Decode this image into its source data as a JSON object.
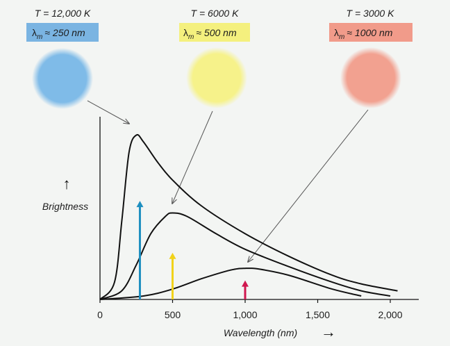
{
  "colors": {
    "background": "#f3f5f3",
    "blue": "#7fbbe8",
    "yellow": "#f6f28a",
    "red": "#f2a190",
    "blue_box": "#7ab4e2",
    "yellow_box": "#f4f07e",
    "red_box": "#f19b8a",
    "blue_arrow": "#1e8fc0",
    "yellow_arrow": "#f1d21a",
    "red_arrow": "#d0174f"
  },
  "stars": [
    {
      "temperature": "T = 12,000 K",
      "lambda_sym": "λ",
      "lambda_sub": "m",
      "peak_text": "≈ 250 nm",
      "peak_nm": 250
    },
    {
      "temperature": "T = 6000 K",
      "lambda_sym": "λ",
      "lambda_sub": "m",
      "peak_text": "≈ 500 nm",
      "peak_nm": 500
    },
    {
      "temperature": "T = 3000 K",
      "lambda_sym": "λ",
      "lambda_sub": "m",
      "peak_text": "≈ 1000 nm",
      "peak_nm": 1000
    }
  ],
  "chart_data": {
    "type": "line",
    "title": "",
    "xlabel": "Wavelength (nm)",
    "ylabel": "Brightness",
    "xlim": [
      0,
      2100
    ],
    "ylim": [
      0,
      1.0
    ],
    "xticks": [
      0,
      500,
      1000,
      1500,
      2000
    ],
    "xtick_labels": [
      "0",
      "500",
      "1,000",
      "1,500",
      "2,000"
    ],
    "series": [
      {
        "name": "T = 12,000 K",
        "peak_nm": 250,
        "peak_brightness": 0.95,
        "x": [
          0,
          100,
          150,
          200,
          250,
          300,
          400,
          500,
          700,
          1000,
          1300,
          1600,
          1800,
          2050
        ],
        "y": [
          0,
          0.1,
          0.45,
          0.85,
          0.95,
          0.91,
          0.79,
          0.69,
          0.54,
          0.38,
          0.25,
          0.14,
          0.09,
          0.05
        ]
      },
      {
        "name": "T = 6000 K",
        "peak_nm": 500,
        "peak_brightness": 0.5,
        "x": [
          0,
          150,
          250,
          350,
          450,
          500,
          600,
          800,
          1000,
          1300,
          1600,
          1800,
          2000
        ],
        "y": [
          0,
          0.05,
          0.2,
          0.38,
          0.48,
          0.5,
          0.48,
          0.38,
          0.29,
          0.19,
          0.1,
          0.05,
          0.02
        ]
      },
      {
        "name": "T = 3000 K",
        "peak_nm": 1000,
        "peak_brightness": 0.18,
        "x": [
          0,
          300,
          500,
          700,
          900,
          1000,
          1100,
          1300,
          1600,
          1800
        ],
        "y": [
          0,
          0.02,
          0.06,
          0.12,
          0.17,
          0.18,
          0.175,
          0.14,
          0.06,
          0.02
        ]
      }
    ],
    "peak_markers": [
      {
        "x": 275,
        "height": 0.57,
        "color": "blue"
      },
      {
        "x": 500,
        "height": 0.27,
        "color": "yellow"
      },
      {
        "x": 1000,
        "height": 0.11,
        "color": "red"
      }
    ],
    "x_axis_arrow": "→",
    "y_axis_arrow": "↑"
  }
}
